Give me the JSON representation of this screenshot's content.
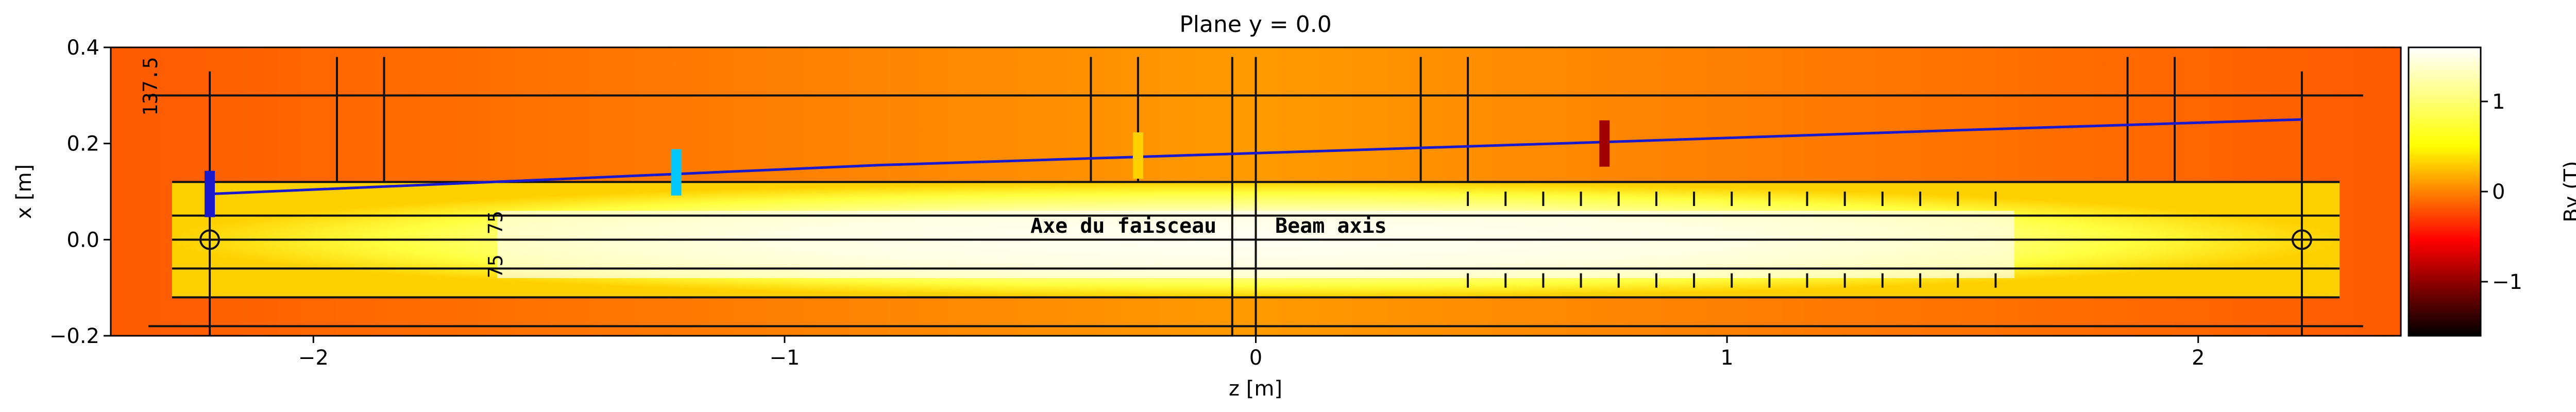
{
  "chart_data": {
    "type": "heatmap",
    "title": "Plane y = 0.0",
    "xlabel": "z [m]",
    "ylabel": "x [m]",
    "xlim": [
      -2.43,
      2.43
    ],
    "ylim": [
      -0.2,
      0.4
    ],
    "xticks": [
      -2,
      -1,
      0,
      1,
      2
    ],
    "xtick_labels": [
      "−2",
      "−1",
      "0",
      "1",
      "2"
    ],
    "yticks": [
      -0.2,
      0.0,
      0.2,
      0.4
    ],
    "ytick_labels": [
      "−0.2",
      "0.0",
      "0.2",
      "0.4"
    ],
    "colorbar": {
      "label": "By (T)",
      "range": [
        -1.6,
        1.6
      ],
      "ticks": [
        -1,
        0,
        1
      ],
      "tick_labels": [
        "−1",
        "0",
        "1"
      ],
      "colormap": "hot"
    },
    "field_region": {
      "z_range": [
        -2.3,
        2.3
      ],
      "x_range": [
        -0.12,
        0.12
      ],
      "peak_By": 1.5,
      "outside_By": 0.5
    },
    "beam_trajectory": {
      "color": "#1a1acc",
      "z": [
        -2.22,
        -1.5,
        -0.8,
        0.0,
        0.8,
        1.5,
        2.22
      ],
      "x": [
        0.095,
        0.125,
        0.155,
        0.18,
        0.205,
        0.228,
        0.25
      ]
    },
    "markers": [
      {
        "z": -2.22,
        "x": 0.095,
        "color": "#1a1acc"
      },
      {
        "z": -1.23,
        "x": 0.14,
        "color": "#00c8ff"
      },
      {
        "z": -0.25,
        "x": 0.175,
        "color": "#ffd000"
      },
      {
        "z": 0.74,
        "x": 0.2,
        "color": "#a00000"
      }
    ],
    "annotations": [
      "Axe du faisceau",
      "Beam axis",
      "137.5",
      "75",
      "75"
    ]
  }
}
